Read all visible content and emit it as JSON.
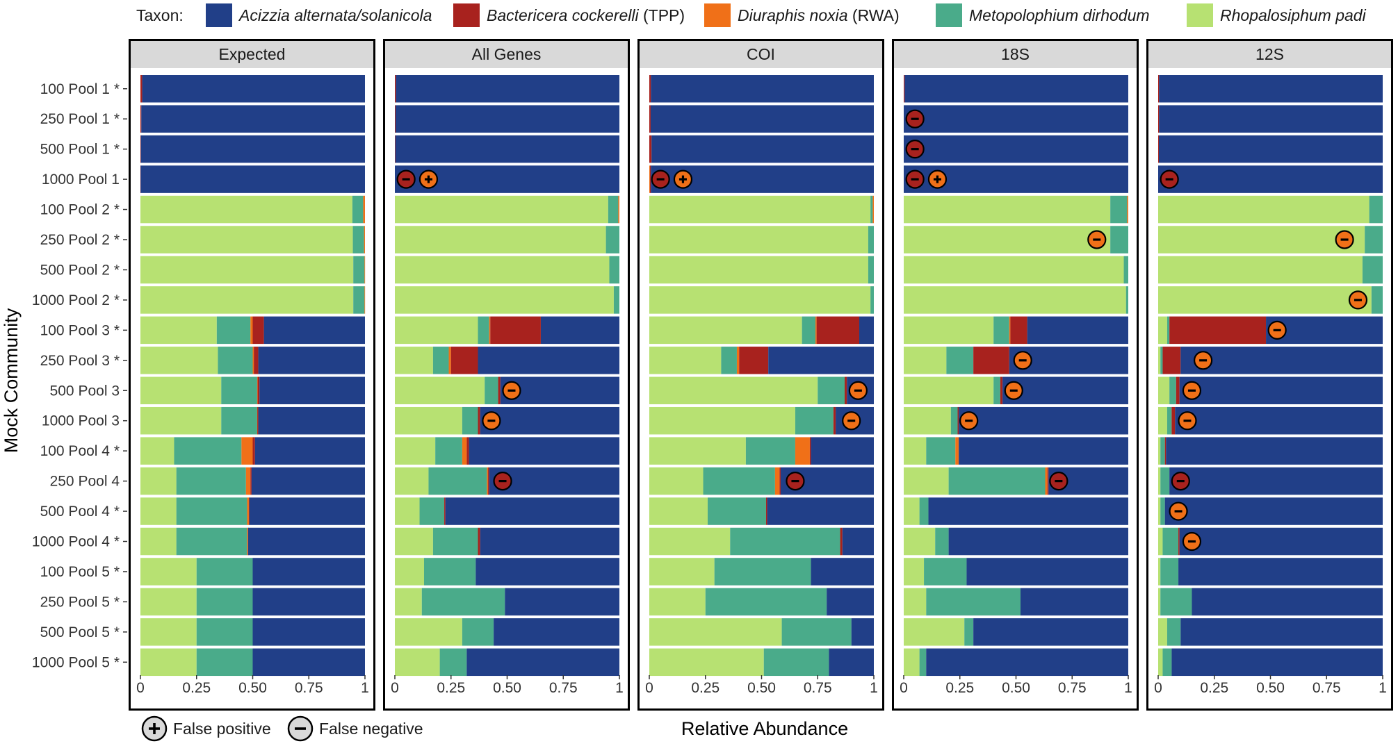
{
  "chart_data": {
    "type": "bar",
    "orientation": "horizontal",
    "stacked": true,
    "xlabel": "Relative Abundance",
    "ylabel": "Mock Community",
    "xlim": [
      0,
      1
    ],
    "x_ticks": [
      0,
      0.25,
      0.5,
      0.75,
      1
    ],
    "x_tick_labels": [
      "0",
      "0.25",
      "0.50",
      "0.75",
      "1"
    ],
    "legend_title": "Taxon:",
    "legend_position": "top",
    "taxa": [
      {
        "name_italic": "Acizzia alternata/solanicola",
        "suffix": "",
        "color": "#213f88"
      },
      {
        "name_italic": "Bactericera cockerelli",
        "suffix": " (TPP)",
        "color": "#a8221e"
      },
      {
        "name_italic": "Diuraphis noxia",
        "suffix": " (RWA)",
        "color": "#f07018"
      },
      {
        "name_italic": "Metopolophium dirhodum",
        "suffix": "",
        "color": "#4aab8a"
      },
      {
        "name_italic": "Rhopalosiphum padi",
        "suffix": "",
        "color": "#b7e172"
      }
    ],
    "stack_order": [
      "Rhopalosiphum padi",
      "Metopolophium dirhodum",
      "Diuraphis noxia",
      "Bactericera cockerelli",
      "Acizzia alternata/solanicola"
    ],
    "markers_legend": [
      {
        "symbol": "+",
        "label": "False positive"
      },
      {
        "symbol": "-",
        "label": "False negative"
      }
    ],
    "marker_colors": {
      "Bactericera cockerelli": "#a8221e",
      "Diuraphis noxia": "#f07018"
    },
    "communities": [
      "100 Pool 1 *",
      "250 Pool 1 *",
      "500 Pool 1 *",
      "1000 Pool 1",
      "100 Pool 2 *",
      "250 Pool 2 *",
      "500 Pool 2 *",
      "1000 Pool 2 *",
      "100 Pool 3 *",
      "250 Pool 3 *",
      "500 Pool 3",
      "1000 Pool 3",
      "100 Pool 4 *",
      "250 Pool 4",
      "500 Pool 4 *",
      "1000 Pool 4 *",
      "100 Pool 5 *",
      "250 Pool 5 *",
      "500 Pool 5 *",
      "1000 Pool 5 *"
    ],
    "panels": [
      {
        "name": "Expected",
        "rows": [
          [
            0,
            0,
            0,
            0.008,
            0.992
          ],
          [
            0,
            0,
            0,
            0.004,
            0.996
          ],
          [
            0,
            0,
            0,
            0.002,
            0.998
          ],
          [
            0,
            0,
            0,
            0.001,
            0.999
          ],
          [
            0.944,
            0.048,
            0.008,
            0,
            0
          ],
          [
            0.946,
            0.05,
            0.004,
            0,
            0
          ],
          [
            0.948,
            0.05,
            0.002,
            0,
            0
          ],
          [
            0.948,
            0.05,
            0.001,
            0,
            0
          ],
          [
            0.34,
            0.15,
            0.01,
            0.05,
            0.45
          ],
          [
            0.345,
            0.155,
            0.005,
            0.02,
            0.475
          ],
          [
            0.36,
            0.16,
            0.002,
            0.008,
            0.47
          ],
          [
            0.36,
            0.16,
            0.001,
            0.004,
            0.475
          ],
          [
            0.15,
            0.3,
            0.05,
            0.01,
            0.49
          ],
          [
            0.16,
            0.31,
            0.02,
            0.005,
            0.505
          ],
          [
            0.16,
            0.315,
            0.008,
            0.002,
            0.515
          ],
          [
            0.16,
            0.315,
            0.004,
            0.001,
            0.52
          ],
          [
            0.25,
            0.25,
            0,
            0,
            0.5
          ],
          [
            0.25,
            0.25,
            0,
            0,
            0.5
          ],
          [
            0.25,
            0.25,
            0,
            0,
            0.5
          ],
          [
            0.25,
            0.25,
            0,
            0,
            0.5
          ]
        ],
        "markers": []
      },
      {
        "name": "All Genes",
        "rows": [
          [
            0,
            0,
            0,
            0.005,
            0.995
          ],
          [
            0,
            0,
            0,
            0.003,
            0.997
          ],
          [
            0,
            0,
            0,
            0.002,
            0.998
          ],
          [
            0,
            0,
            0,
            0,
            1
          ],
          [
            0.95,
            0.045,
            0.005,
            0,
            0
          ],
          [
            0.94,
            0.06,
            0,
            0,
            0
          ],
          [
            0.955,
            0.045,
            0,
            0,
            0
          ],
          [
            0.975,
            0.025,
            0,
            0,
            0
          ],
          [
            0.37,
            0.05,
            0.005,
            0.225,
            0.35
          ],
          [
            0.17,
            0.07,
            0.01,
            0.12,
            0.63
          ],
          [
            0.4,
            0.06,
            0,
            0.01,
            0.53
          ],
          [
            0.3,
            0.07,
            0,
            0.01,
            0.62
          ],
          [
            0.18,
            0.12,
            0.02,
            0.01,
            0.67
          ],
          [
            0.15,
            0.26,
            0.005,
            0.005,
            0.58
          ],
          [
            0.11,
            0.11,
            0,
            0.005,
            0.775
          ],
          [
            0.17,
            0.2,
            0,
            0.01,
            0.62
          ],
          [
            0.13,
            0.23,
            0,
            0,
            0.64
          ],
          [
            0.12,
            0.37,
            0,
            0,
            0.51
          ],
          [
            0.3,
            0.14,
            0,
            0,
            0.56
          ],
          [
            0.2,
            0.12,
            0,
            0,
            0.68
          ]
        ],
        "markers": [
          {
            "row": 3,
            "x": 0.05,
            "type": "-",
            "taxon": "Bactericera cockerelli"
          },
          {
            "row": 3,
            "x": 0.15,
            "type": "+",
            "taxon": "Diuraphis noxia"
          },
          {
            "row": 10,
            "x": 0.52,
            "type": "-",
            "taxon": "Diuraphis noxia"
          },
          {
            "row": 11,
            "x": 0.43,
            "type": "-",
            "taxon": "Diuraphis noxia"
          },
          {
            "row": 13,
            "x": 0.48,
            "type": "-",
            "taxon": "Bactericera cockerelli"
          }
        ]
      },
      {
        "name": "COI",
        "rows": [
          [
            0,
            0,
            0,
            0.007,
            0.993
          ],
          [
            0,
            0,
            0,
            0.006,
            0.994
          ],
          [
            0,
            0,
            0,
            0.01,
            0.99
          ],
          [
            0,
            0,
            0.003,
            0.004,
            0.993
          ],
          [
            0.985,
            0.01,
            0.005,
            0,
            0
          ],
          [
            0.975,
            0.025,
            0,
            0,
            0
          ],
          [
            0.975,
            0.025,
            0,
            0,
            0
          ],
          [
            0.985,
            0.015,
            0,
            0,
            0
          ],
          [
            0.68,
            0.06,
            0.005,
            0.19,
            0.065
          ],
          [
            0.32,
            0.07,
            0.01,
            0.13,
            0.47
          ],
          [
            0.75,
            0.12,
            0,
            0.01,
            0.12
          ],
          [
            0.65,
            0.17,
            0,
            0.01,
            0.17
          ],
          [
            0.43,
            0.22,
            0.065,
            0.005,
            0.28
          ],
          [
            0.24,
            0.32,
            0.02,
            0.005,
            0.415
          ],
          [
            0.26,
            0.26,
            0,
            0.005,
            0.475
          ],
          [
            0.36,
            0.49,
            0,
            0.01,
            0.14
          ],
          [
            0.29,
            0.43,
            0,
            0,
            0.28
          ],
          [
            0.25,
            0.54,
            0,
            0,
            0.21
          ],
          [
            0.59,
            0.31,
            0,
            0,
            0.1
          ],
          [
            0.51,
            0.29,
            0,
            0,
            0.2
          ]
        ],
        "markers": [
          {
            "row": 3,
            "x": 0.05,
            "type": "-",
            "taxon": "Bactericera cockerelli"
          },
          {
            "row": 3,
            "x": 0.15,
            "type": "+",
            "taxon": "Diuraphis noxia"
          },
          {
            "row": 10,
            "x": 0.93,
            "type": "-",
            "taxon": "Diuraphis noxia"
          },
          {
            "row": 11,
            "x": 0.9,
            "type": "-",
            "taxon": "Diuraphis noxia"
          },
          {
            "row": 13,
            "x": 0.65,
            "type": "-",
            "taxon": "Bactericera cockerelli"
          }
        ]
      },
      {
        "name": "18S",
        "rows": [
          [
            0,
            0,
            0,
            0.004,
            0.996
          ],
          [
            0,
            0,
            0,
            0,
            1
          ],
          [
            0,
            0,
            0,
            0,
            1
          ],
          [
            0,
            0,
            0,
            0,
            1
          ],
          [
            0.92,
            0.075,
            0.005,
            0,
            0
          ],
          [
            0.92,
            0.08,
            0,
            0,
            0
          ],
          [
            0.98,
            0.02,
            0,
            0,
            0
          ],
          [
            0.99,
            0.01,
            0,
            0,
            0
          ],
          [
            0.4,
            0.07,
            0.005,
            0.075,
            0.45
          ],
          [
            0.19,
            0.12,
            0,
            0.16,
            0.53
          ],
          [
            0.4,
            0.03,
            0,
            0.01,
            0.56
          ],
          [
            0.21,
            0.03,
            0,
            0.005,
            0.755
          ],
          [
            0.1,
            0.13,
            0.015,
            0,
            0.755
          ],
          [
            0.2,
            0.43,
            0.01,
            0.005,
            0.355
          ],
          [
            0.07,
            0.04,
            0,
            0,
            0.89
          ],
          [
            0.14,
            0.06,
            0,
            0,
            0.8
          ],
          [
            0.09,
            0.19,
            0,
            0,
            0.72
          ],
          [
            0.1,
            0.42,
            0,
            0,
            0.48
          ],
          [
            0.27,
            0.04,
            0,
            0,
            0.69
          ],
          [
            0.07,
            0.03,
            0,
            0,
            0.9
          ]
        ],
        "markers": [
          {
            "row": 1,
            "x": 0.05,
            "type": "-",
            "taxon": "Bactericera cockerelli"
          },
          {
            "row": 2,
            "x": 0.05,
            "type": "-",
            "taxon": "Bactericera cockerelli"
          },
          {
            "row": 3,
            "x": 0.05,
            "type": "-",
            "taxon": "Bactericera cockerelli"
          },
          {
            "row": 3,
            "x": 0.15,
            "type": "+",
            "taxon": "Diuraphis noxia"
          },
          {
            "row": 5,
            "x": 0.86,
            "type": "-",
            "taxon": "Diuraphis noxia"
          },
          {
            "row": 9,
            "x": 0.53,
            "type": "-",
            "taxon": "Diuraphis noxia"
          },
          {
            "row": 10,
            "x": 0.49,
            "type": "-",
            "taxon": "Diuraphis noxia"
          },
          {
            "row": 11,
            "x": 0.29,
            "type": "-",
            "taxon": "Diuraphis noxia"
          },
          {
            "row": 13,
            "x": 0.69,
            "type": "-",
            "taxon": "Bactericera cockerelli"
          }
        ]
      },
      {
        "name": "12S",
        "rows": [
          [
            0,
            0,
            0,
            0.004,
            0.996
          ],
          [
            0,
            0,
            0,
            0.004,
            0.996
          ],
          [
            0,
            0,
            0,
            0.003,
            0.997
          ],
          [
            0,
            0,
            0,
            0,
            1
          ],
          [
            0.94,
            0.06,
            0,
            0,
            0
          ],
          [
            0.92,
            0.08,
            0,
            0,
            0
          ],
          [
            0.91,
            0.09,
            0,
            0,
            0
          ],
          [
            0.95,
            0.05,
            0,
            0,
            0
          ],
          [
            0.04,
            0.01,
            0,
            0.43,
            0.52
          ],
          [
            0.01,
            0.01,
            0,
            0.08,
            0.9
          ],
          [
            0.05,
            0.03,
            0,
            0.015,
            0.905
          ],
          [
            0.04,
            0.02,
            0,
            0.015,
            0.925
          ],
          [
            0.01,
            0.02,
            0,
            0.005,
            0.965
          ],
          [
            0.01,
            0.04,
            0,
            0,
            0.95
          ],
          [
            0.01,
            0.02,
            0,
            0,
            0.97
          ],
          [
            0.02,
            0.07,
            0,
            0.005,
            0.905
          ],
          [
            0.01,
            0.08,
            0,
            0,
            0.91
          ],
          [
            0.01,
            0.14,
            0,
            0,
            0.85
          ],
          [
            0.04,
            0.06,
            0,
            0,
            0.9
          ],
          [
            0.02,
            0.04,
            0,
            0,
            0.94
          ]
        ],
        "markers": [
          {
            "row": 3,
            "x": 0.05,
            "type": "-",
            "taxon": "Bactericera cockerelli"
          },
          {
            "row": 5,
            "x": 0.83,
            "type": "-",
            "taxon": "Diuraphis noxia"
          },
          {
            "row": 7,
            "x": 0.89,
            "type": "-",
            "taxon": "Diuraphis noxia"
          },
          {
            "row": 8,
            "x": 0.53,
            "type": "-",
            "taxon": "Diuraphis noxia"
          },
          {
            "row": 9,
            "x": 0.2,
            "type": "-",
            "taxon": "Diuraphis noxia"
          },
          {
            "row": 10,
            "x": 0.15,
            "type": "-",
            "taxon": "Diuraphis noxia"
          },
          {
            "row": 11,
            "x": 0.13,
            "type": "-",
            "taxon": "Diuraphis noxia"
          },
          {
            "row": 13,
            "x": 0.1,
            "type": "-",
            "taxon": "Bactericera cockerelli"
          },
          {
            "row": 14,
            "x": 0.09,
            "type": "-",
            "taxon": "Diuraphis noxia"
          },
          {
            "row": 15,
            "x": 0.15,
            "type": "-",
            "taxon": "Diuraphis noxia"
          }
        ]
      }
    ]
  }
}
